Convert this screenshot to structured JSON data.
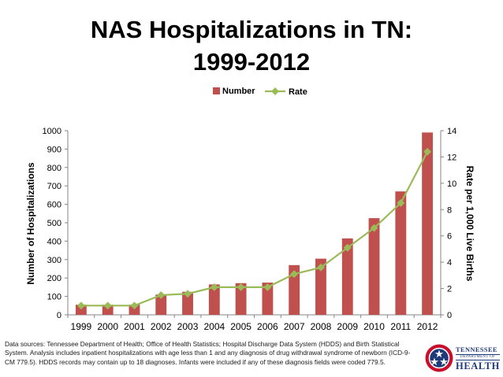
{
  "chart_data": {
    "type": "bar+line",
    "title_line1": "NAS Hospitalizations in TN:",
    "title_line2": "1999-2012",
    "categories": [
      "1999",
      "2000",
      "2001",
      "2002",
      "2003",
      "2004",
      "2005",
      "2006",
      "2007",
      "2008",
      "2009",
      "2010",
      "2011",
      "2012"
    ],
    "series": [
      {
        "name": "Number",
        "kind": "bar",
        "axis": "left",
        "color": "#c0504d",
        "values": [
          55,
          55,
          55,
          110,
          125,
          165,
          172,
          175,
          270,
          305,
          415,
          525,
          670,
          990
        ]
      },
      {
        "name": "Rate",
        "kind": "line",
        "axis": "right",
        "color": "#9bbb59",
        "values": [
          0.7,
          0.7,
          0.7,
          1.5,
          1.6,
          2.1,
          2.1,
          2.1,
          3.1,
          3.6,
          5.1,
          6.6,
          8.5,
          12.4
        ]
      }
    ],
    "ylabel": "Number of Hospitalizations",
    "y2label": "Rate per 1,000 Live Births",
    "ylim": [
      0,
      1000
    ],
    "y_ticks": [
      0,
      100,
      200,
      300,
      400,
      500,
      600,
      700,
      800,
      900,
      1000
    ],
    "y2lim": [
      0,
      14
    ],
    "y2_ticks": [
      0,
      2,
      4,
      6,
      8,
      10,
      12,
      14
    ],
    "legend": [
      "Number",
      "Rate"
    ],
    "legend_position": "top-right",
    "grid": false
  },
  "footnote": "Data sources: Tennessee Department of Health; Office of Health Statistics; Hospital Discharge Data System (HDDS) and Birth Statistical System.  Analysis includes inpatient hospitalizations with age less than 1 and any diagnosis of drug withdrawal syndrome of newborn (ICD-9-CM 779.5).  HDDS records may contain up to 18 diagnoses.  Infants were included if any of these diagnosis fields were coded 779.5.",
  "logo": {
    "line1": "TENNESSEE",
    "line2": "DEPARTMENT OF",
    "line3": "HEALTH",
    "colors": {
      "navy": "#1f3a78",
      "red": "#c8102e"
    }
  }
}
